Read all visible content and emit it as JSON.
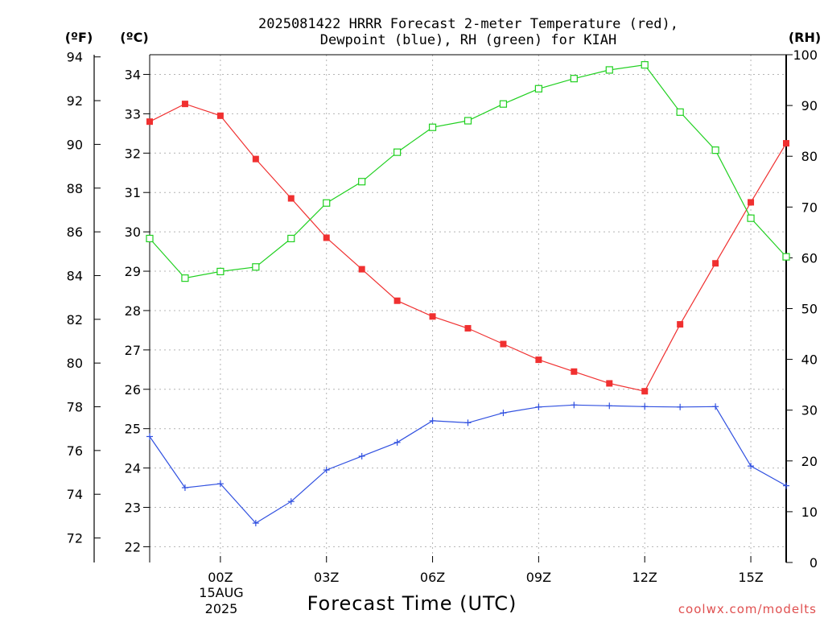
{
  "chart_data": {
    "type": "line",
    "title_line1": "2025081422 HRRR Forecast 2-meter Temperature (red),",
    "title_line2": "Dewpoint (blue), RH (green) for KIAH",
    "xlabel": "Forecast Time (UTC)",
    "watermark": "coolwx.com/modelts",
    "unit_f": "(ºF)",
    "unit_c": "(ºC)",
    "unit_rh": "(RH)",
    "x_tick_labels": [
      "00Z",
      "03Z",
      "06Z",
      "09Z",
      "12Z",
      "15Z"
    ],
    "date_label_line1": "15AUG",
    "date_label_line2": "2025",
    "x_hours": [
      "2025-08-14 22Z",
      "2025-08-14 23Z",
      "2025-08-15 00Z",
      "2025-08-15 01Z",
      "2025-08-15 02Z",
      "2025-08-15 03Z",
      "2025-08-15 04Z",
      "2025-08-15 05Z",
      "2025-08-15 06Z",
      "2025-08-15 07Z",
      "2025-08-15 08Z",
      "2025-08-15 09Z",
      "2025-08-15 10Z",
      "2025-08-15 11Z",
      "2025-08-15 12Z",
      "2025-08-15 13Z",
      "2025-08-15 14Z",
      "2025-08-15 15Z",
      "2025-08-15 16Z"
    ],
    "xlim": [
      "2025-08-14 22Z",
      "2025-08-15 16Z"
    ],
    "y_f_ticks": [
      72,
      74,
      76,
      78,
      80,
      82,
      84,
      86,
      88,
      90,
      92,
      94
    ],
    "y_c_ticks": [
      22,
      23,
      24,
      25,
      26,
      27,
      28,
      29,
      30,
      31,
      32,
      33,
      34
    ],
    "y_c_lim": [
      21.6,
      34.5
    ],
    "y_rh_ticks": [
      0,
      10,
      20,
      30,
      40,
      50,
      60,
      70,
      80,
      90,
      100
    ],
    "y_rh_lim": [
      0,
      100
    ],
    "grid": true,
    "series": [
      {
        "name": "Temperature",
        "unit": "C",
        "color": "#f03030",
        "marker": "filled-square",
        "values": [
          32.8,
          33.25,
          32.95,
          31.85,
          30.85,
          29.85,
          29.05,
          28.25,
          27.85,
          27.55,
          27.15,
          26.75,
          26.45,
          26.15,
          25.95,
          27.65,
          29.2,
          30.75,
          32.25
        ]
      },
      {
        "name": "Dewpoint",
        "unit": "C",
        "color": "#3050e0",
        "marker": "plus",
        "values": [
          24.8,
          23.5,
          23.6,
          22.6,
          23.15,
          23.95,
          24.3,
          24.65,
          25.2,
          25.15,
          25.4,
          25.55,
          25.6,
          25.58,
          25.56,
          25.55,
          25.56,
          24.05,
          23.55
        ]
      },
      {
        "name": "RH",
        "unit": "%",
        "color": "#20d020",
        "marker": "open-square",
        "values": [
          63.8,
          56.0,
          57.3,
          58.2,
          63.8,
          70.8,
          75.0,
          80.8,
          85.7,
          87.0,
          90.3,
          93.3,
          95.3,
          97.0,
          98.0,
          88.7,
          81.2,
          67.8,
          60.2
        ]
      }
    ]
  }
}
